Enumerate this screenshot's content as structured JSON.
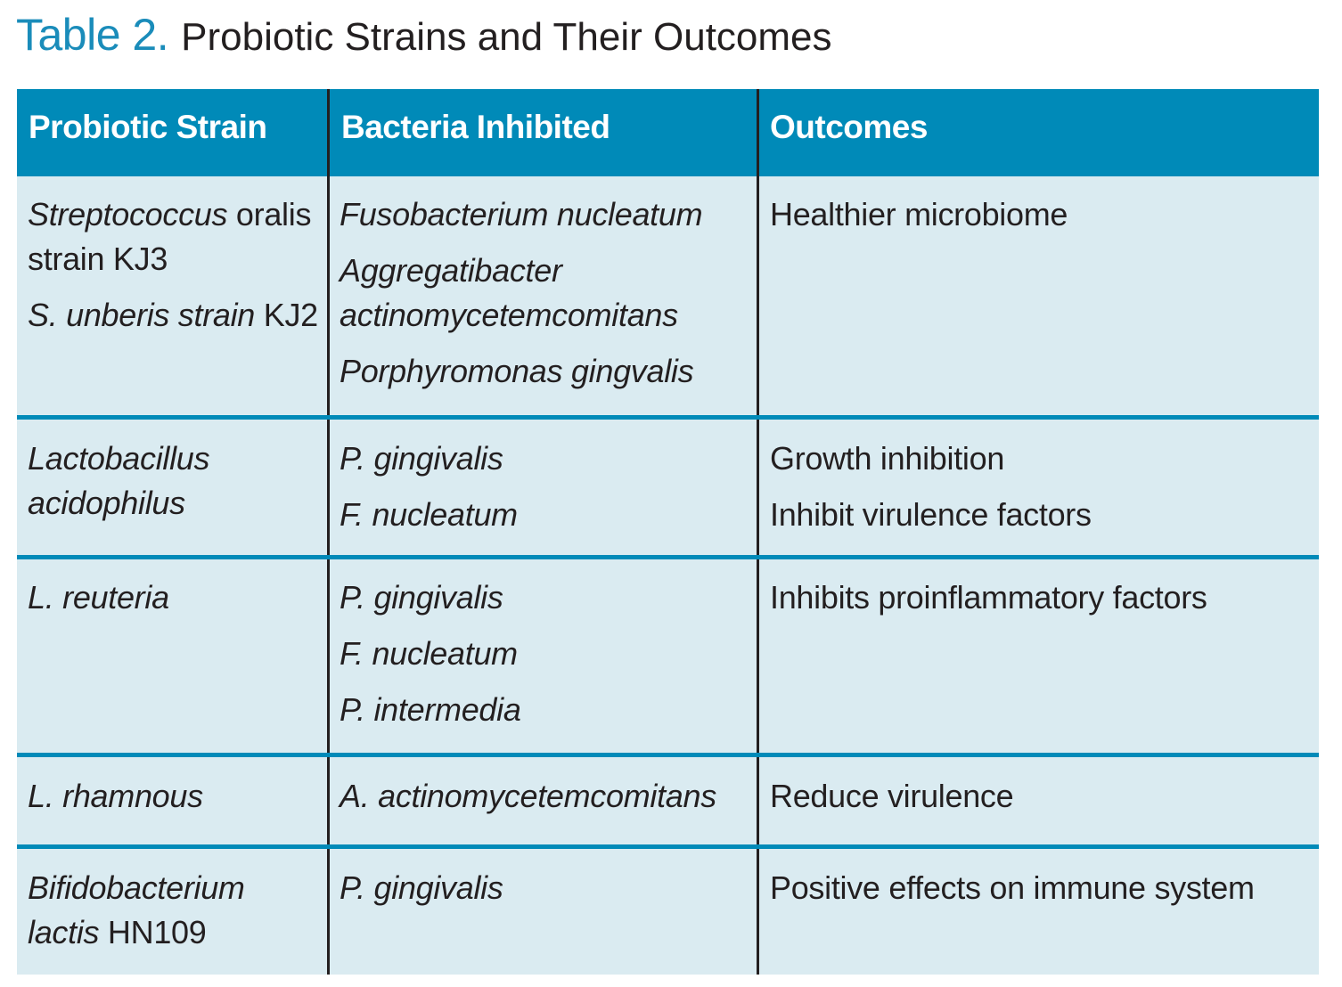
{
  "title": {
    "number": "Table 2.",
    "text": "Probiotic Strains and Their Outcomes"
  },
  "headers": [
    "Probiotic Strain",
    "Bacteria Inhibited",
    "Outcomes"
  ],
  "rows": [
    {
      "strain": [
        {
          "italic": "Streptococcus",
          "plain": " oralis"
        },
        {
          "plain": "strain KJ3"
        },
        {
          "italic": "S. unberis strain",
          "plain": " KJ2"
        }
      ],
      "bacteria": [
        "Fusobacterium nucleatum",
        "Aggregatibacter",
        "actinomycetemcomitans",
        "Porphyromonas gingvalis"
      ],
      "outcomes": [
        "Healthier microbiome"
      ]
    },
    {
      "strain": [
        {
          "italic": "Lactobacillus"
        },
        {
          "italic": "acidophilus"
        }
      ],
      "bacteria": [
        "P. gingivalis",
        "F. nucleatum"
      ],
      "outcomes": [
        "Growth inhibition",
        "Inhibit virulence factors"
      ]
    },
    {
      "strain": [
        {
          "italic": "L. reuteria"
        }
      ],
      "bacteria": [
        "P. gingivalis",
        "F. nucleatum",
        "P. intermedia"
      ],
      "outcomes": [
        "Inhibits proinflammatory factors"
      ]
    },
    {
      "strain": [
        {
          "italic": "L. rhamnous"
        }
      ],
      "bacteria": [
        "A. actinomycetemcomitans"
      ],
      "outcomes": [
        "Reduce virulence"
      ]
    },
    {
      "strain": [
        {
          "italic": "Bifidobacterium"
        },
        {
          "italic": "lactis",
          "plain": " HN109"
        }
      ],
      "bacteria": [
        "P. gingivalis"
      ],
      "outcomes": [
        "Positive effects on immune system"
      ]
    }
  ]
}
